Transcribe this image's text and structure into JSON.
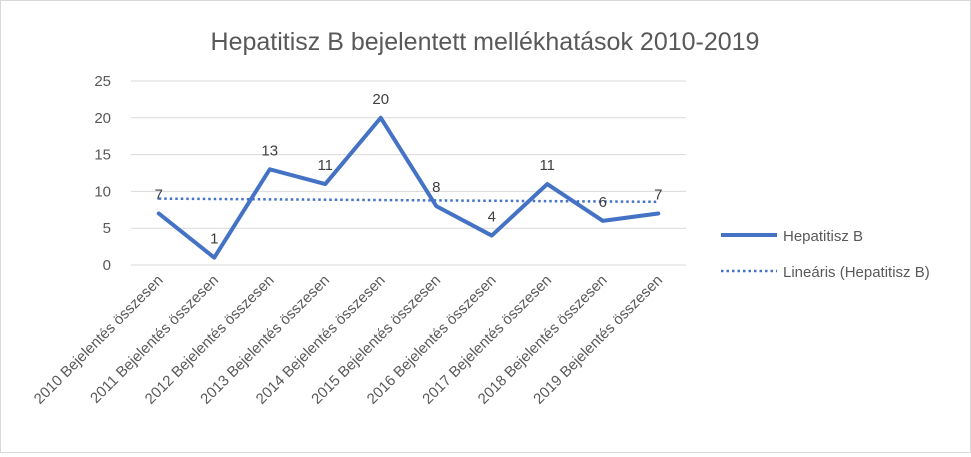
{
  "chart_data": {
    "type": "line",
    "title": "Hepatitisz B bejelentett mellékhatások 2010-2019",
    "categories": [
      "2010 Bejelentés összesen",
      "2011 Bejelentés összesen",
      "2012 Bejelentés összesen",
      "2013 Bejelentés összesen",
      "2014 Bejelentés összesen",
      "2015 Bejelentés összesen",
      "2016 Bejelentés összesen",
      "2017 Bejelentés összesen",
      "2018 Bejelentés összesen",
      "2019 Bejelentés összesen"
    ],
    "series": [
      {
        "name": "Hepatitisz B",
        "values": [
          7,
          1,
          13,
          11,
          20,
          8,
          4,
          11,
          6,
          7
        ],
        "color": "#4472c4",
        "style": "solid"
      }
    ],
    "trendline": {
      "name": "Lineáris (Hepatitisz B)",
      "type": "linear",
      "color": "#4472c4",
      "style": "dotted"
    },
    "ylim": [
      0,
      25
    ],
    "yticks": [
      0,
      5,
      10,
      15,
      20,
      25
    ],
    "xlabel": "",
    "ylabel": "",
    "grid": true,
    "legend": "right",
    "data_labels": true
  }
}
